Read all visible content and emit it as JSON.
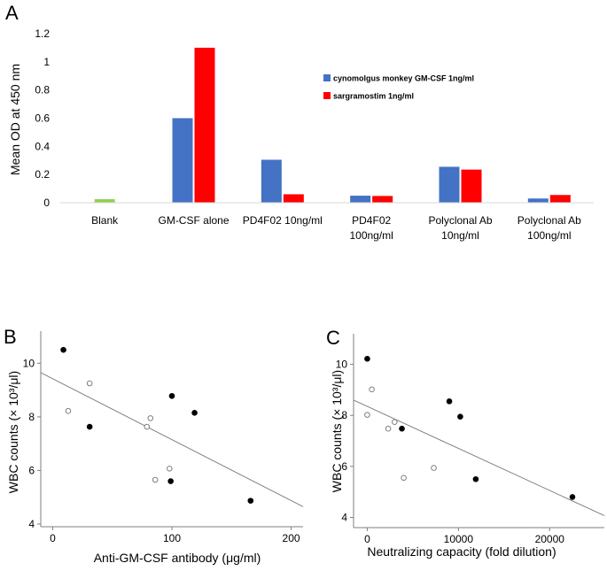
{
  "panels": {
    "a": "A",
    "b": "B",
    "c": "C"
  },
  "colors": {
    "blank": "#92d050",
    "cyno": "#4472c4",
    "sarg": "#ff0000",
    "axis": "#7f7f7f",
    "fit": "#808080"
  },
  "chart_data": [
    {
      "id": "A",
      "type": "bar",
      "title": "",
      "xlabel": "",
      "ylabel": "Mean OD at 450 nm",
      "ylim": [
        0,
        1.2
      ],
      "yticks": [
        "0",
        "0.2",
        "0.4",
        "0.6",
        "0.8",
        "1",
        "1.2"
      ],
      "categories": [
        [
          "Blank"
        ],
        [
          "GM-CSF alone"
        ],
        [
          "PD4F02 10ng/ml"
        ],
        [
          "PD4F02",
          "100ng/ml"
        ],
        [
          "Polyclonal Ab",
          "10ng/ml"
        ],
        [
          "Polyclonal Ab",
          "100ng/ml"
        ]
      ],
      "blank_value": 0.025,
      "series": [
        {
          "name": "cynomolgus monkey GM-CSF 1ng/ml",
          "values": [
            null,
            0.6,
            0.305,
            0.05,
            0.255,
            0.03
          ]
        },
        {
          "name": "sargramostim 1ng/ml",
          "values": [
            null,
            1.1,
            0.06,
            0.048,
            0.235,
            0.055
          ]
        }
      ],
      "legend": "top-right"
    },
    {
      "id": "B",
      "type": "scatter",
      "xlabel": "Anti-GM-CSF antibody  (μg/ml)",
      "ylabel": "WBC counts (× 10³/μl)",
      "xlim": [
        -10,
        210
      ],
      "ylim": [
        3.9,
        11.2
      ],
      "xticks": [
        "0",
        "100",
        "200"
      ],
      "yticks": [
        "4",
        "6",
        "8",
        "10"
      ],
      "series": [
        {
          "name": "filled",
          "points": [
            [
              9,
              10.5
            ],
            [
              31,
              7.63
            ],
            [
              100,
              8.78
            ],
            [
              99,
              5.6
            ],
            [
              119,
              8.15
            ],
            [
              166,
              4.87
            ]
          ]
        },
        {
          "name": "open",
          "points": [
            [
              13,
              8.22
            ],
            [
              31,
              9.25
            ],
            [
              79,
              7.63
            ],
            [
              82,
              7.95
            ],
            [
              86,
              5.65
            ],
            [
              98,
              6.07
            ]
          ]
        }
      ],
      "fit_line": [
        [
          -10,
          9.65
        ],
        [
          210,
          4.65
        ]
      ]
    },
    {
      "id": "C",
      "type": "scatter",
      "xlabel": "Neutralizing capacity (fold dilution)",
      "ylabel": "WBC counts (× 10³/μl)",
      "xlim": [
        -1500,
        26000
      ],
      "ylim": [
        3.6,
        11.2
      ],
      "xticks": [
        "0",
        "10000",
        "20000"
      ],
      "yticks": [
        "4",
        "6",
        "8",
        "10"
      ],
      "series": [
        {
          "name": "filled",
          "points": [
            [
              0,
              10.22
            ],
            [
              3800,
              7.48
            ],
            [
              9000,
              8.55
            ],
            [
              10200,
              7.95
            ],
            [
              11900,
              5.5
            ],
            [
              22500,
              4.8
            ]
          ]
        },
        {
          "name": "open",
          "points": [
            [
              0,
              8.02
            ],
            [
              500,
              9.02
            ],
            [
              2300,
              7.48
            ],
            [
              3000,
              7.74
            ],
            [
              4000,
              5.55
            ],
            [
              7300,
              5.94
            ]
          ]
        }
      ],
      "fit_line": [
        [
          -1500,
          8.6
        ],
        [
          26000,
          4.07
        ]
      ]
    }
  ]
}
